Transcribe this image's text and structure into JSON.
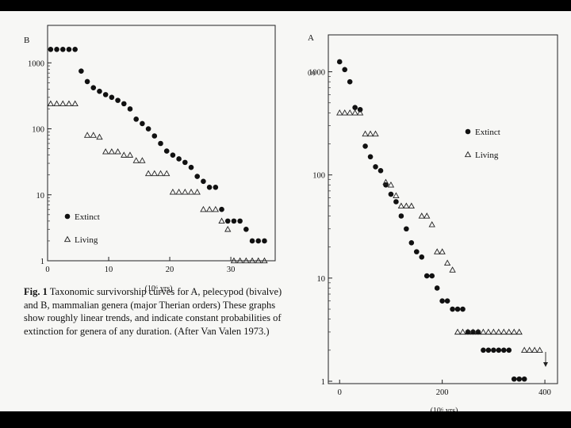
{
  "caption": {
    "label": "Fig. 1",
    "text": "Taxonomic survivorship curves for A, pelecypod (bivalve) and B, mammalian genera (major Therian orders) These graphs show roughly linear trends, and indicate constant probabilities of extinction for genera of any duration. (After Van Valen 1973.)"
  },
  "chart_data": [
    {
      "panel": "B",
      "type": "scatter",
      "xlabel": "(10⁶ yrs)",
      "ylabel": "",
      "x_ticks": [
        "0",
        "10",
        "20",
        "30"
      ],
      "y_ticks": [
        "1",
        "10",
        "100",
        "1000"
      ],
      "xlim": [
        0,
        37
      ],
      "ylim": [
        1,
        3500
      ],
      "y_scale": "log",
      "legend": {
        "position": "lower-left",
        "entries": [
          "Extinct",
          "Living"
        ]
      },
      "series": [
        {
          "name": "Extinct",
          "marker": "filled-circle",
          "x": [
            0.5,
            1.5,
            2.5,
            3.5,
            4.5,
            5.5,
            6.5,
            7.5,
            8.5,
            9.5,
            10.5,
            11.5,
            12.5,
            13.5,
            14.5,
            15.5,
            16.5,
            17.5,
            18.5,
            19.5,
            20.5,
            21.5,
            22.5,
            23.5,
            24.5,
            25.5,
            26.5,
            27.5,
            28.5,
            29.5,
            30.5,
            31.5,
            32.5,
            33.5,
            34.5,
            35.5
          ],
          "y": [
            1600,
            1600,
            1600,
            1600,
            1600,
            750,
            520,
            420,
            370,
            330,
            300,
            270,
            240,
            200,
            140,
            120,
            100,
            78,
            60,
            46,
            40,
            35,
            31,
            26,
            19,
            16,
            13,
            13,
            6,
            4,
            4,
            4,
            3,
            2,
            2,
            2
          ]
        },
        {
          "name": "Living",
          "marker": "open-triangle",
          "x": [
            0.5,
            1.5,
            2.5,
            3.5,
            4.5,
            5.5,
            6.5,
            7.5,
            8.5,
            9.5,
            10.5,
            11.5,
            12.5,
            13.5,
            14.5,
            15.5,
            16.5,
            17.5,
            18.5,
            19.5,
            20.5,
            21.5,
            22.5,
            23.5,
            24.5,
            25.5,
            26.5,
            27.5,
            28.5,
            29.5,
            30.5,
            31.5,
            32.5,
            33.5,
            34.5,
            35.5
          ],
          "y": [
            240,
            240,
            240,
            240,
            240,
            null,
            80,
            80,
            75,
            45,
            45,
            45,
            40,
            40,
            33,
            33,
            21,
            21,
            21,
            21,
            11,
            11,
            11,
            11,
            11,
            6,
            6,
            6,
            4,
            3,
            1,
            1,
            1,
            1,
            1,
            1
          ]
        }
      ]
    },
    {
      "panel": "A",
      "type": "scatter",
      "xlabel": "(10⁶ yrs)",
      "ylabel": "",
      "x_ticks": [
        "0",
        "200",
        "400"
      ],
      "y_ticks": [
        "1",
        "10",
        "100",
        "1000"
      ],
      "xlim": [
        -5,
        420
      ],
      "ylim": [
        1,
        1600
      ],
      "y_scale": "log",
      "legend": {
        "position": "upper-right",
        "entries": [
          "Extinct",
          "Living"
        ]
      },
      "annotations": [
        "(a)"
      ],
      "series": [
        {
          "name": "Extinct",
          "marker": "filled-circle",
          "x": [
            0,
            10,
            20,
            30,
            40,
            50,
            60,
            70,
            80,
            90,
            100,
            110,
            120,
            130,
            140,
            150,
            160,
            170,
            180,
            190,
            200,
            210,
            220,
            230,
            240,
            250,
            260,
            270,
            280,
            290,
            300,
            310,
            320,
            330,
            340,
            350,
            360
          ],
          "y": [
            1250,
            1050,
            800,
            450,
            430,
            190,
            150,
            120,
            110,
            80,
            65,
            55,
            40,
            30,
            22,
            18,
            16,
            10.5,
            10.5,
            8,
            6,
            6,
            5,
            5,
            5,
            3,
            3,
            3,
            2,
            2,
            2,
            2,
            2,
            2,
            1.05,
            1.05,
            1.05
          ]
        },
        {
          "name": "Living",
          "marker": "open-triangle",
          "x": [
            0,
            10,
            20,
            30,
            40,
            50,
            60,
            70,
            80,
            90,
            100,
            110,
            120,
            130,
            140,
            150,
            160,
            170,
            180,
            190,
            200,
            210,
            220,
            230,
            240,
            250,
            260,
            270,
            280,
            290,
            300,
            310,
            320,
            330,
            340,
            350,
            360,
            370,
            380,
            390
          ],
          "y": [
            400,
            400,
            400,
            400,
            400,
            250,
            250,
            250,
            null,
            85,
            80,
            63,
            50,
            50,
            50,
            null,
            40,
            40,
            33,
            18,
            18,
            14,
            12,
            3,
            3,
            3,
            3,
            3,
            3,
            3,
            3,
            3,
            3,
            3,
            3,
            3,
            2,
            2,
            2,
            2
          ]
        }
      ]
    }
  ]
}
